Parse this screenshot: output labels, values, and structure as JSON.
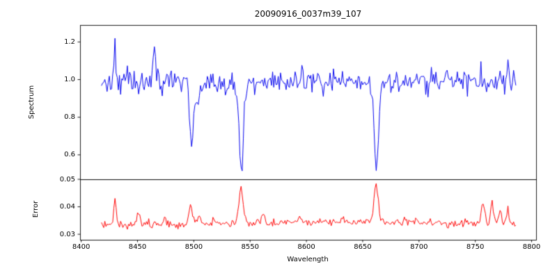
{
  "chart_data": {
    "type": "line",
    "title": "20090916_0037m39_107",
    "xlabel": "Wavelength",
    "xlim": [
      8399,
      8804
    ],
    "xticks": [
      "8400",
      "8450",
      "8500",
      "8550",
      "8600",
      "8650",
      "8700",
      "8750",
      "8800"
    ],
    "grid": false,
    "legend": false,
    "panels": [
      {
        "name": "spectrum",
        "ylabel": "Spectrum",
        "ylim": [
          0.47,
          1.29
        ],
        "yticks": [
          "0.6",
          "0.8",
          "1.0",
          "1.2"
        ],
        "line_color": "#0000ee",
        "series": {
          "x_start": 8418,
          "x_end": 8786,
          "x_step": 1,
          "continuum": 0.99,
          "noise_sigma": 0.034,
          "absorption_lines": [
            {
              "center": 8498.0,
              "depth": 0.38,
              "sigma": 1.6,
              "min_value": 0.61
            },
            {
              "center": 8504.0,
              "depth": 0.13,
              "sigma": 1.3,
              "min_value": 0.85
            },
            {
              "center": 8542.1,
              "depth": 0.46,
              "sigma": 2.0,
              "min_value": 0.54
            },
            {
              "center": 8662.1,
              "depth": 0.46,
              "sigma": 2.0,
              "min_value": 0.54
            }
          ],
          "emission_spikes": [
            {
              "center": 8430,
              "amp": 0.22,
              "sigma": 0.7,
              "peak_value": 1.21
            },
            {
              "center": 8465,
              "amp": 0.27,
              "sigma": 0.7,
              "peak_value": 1.26
            },
            {
              "center": 8779,
              "amp": 0.17,
              "sigma": 0.7,
              "peak_value": 1.16
            }
          ]
        }
      },
      {
        "name": "error",
        "ylabel": "Error",
        "ylim": [
          0.028,
          0.05
        ],
        "yticks": [
          "0.03",
          "0.04",
          "0.05"
        ],
        "line_color": "#ff0000",
        "series": {
          "x_start": 8418,
          "x_end": 8786,
          "x_step": 1,
          "baseline": 0.0333,
          "noise_sigma": 0.0007,
          "broad_hump": {
            "center": 8630,
            "amp": 0.0012,
            "sigma": 110
          },
          "peaks": [
            {
              "center": 8430,
              "amp": 0.0095,
              "sigma": 1.2
            },
            {
              "center": 8451,
              "amp": 0.0042,
              "sigma": 1.2
            },
            {
              "center": 8474,
              "amp": 0.0024,
              "sigma": 1.0
            },
            {
              "center": 8497,
              "amp": 0.0062,
              "sigma": 1.5
            },
            {
              "center": 8505,
              "amp": 0.0032,
              "sigma": 1.2
            },
            {
              "center": 8542,
              "amp": 0.0135,
              "sigma": 1.8
            },
            {
              "center": 8562,
              "amp": 0.0028,
              "sigma": 1.2
            },
            {
              "center": 8594,
              "amp": 0.0018,
              "sigma": 1.5
            },
            {
              "center": 8662,
              "amp": 0.0145,
              "sigma": 1.8
            },
            {
              "center": 8688,
              "amp": 0.002,
              "sigma": 1.2
            },
            {
              "center": 8757,
              "amp": 0.007,
              "sigma": 1.5
            },
            {
              "center": 8765,
              "amp": 0.0085,
              "sigma": 1.2
            },
            {
              "center": 8772,
              "amp": 0.0055,
              "sigma": 1.2
            },
            {
              "center": 8779,
              "amp": 0.0045,
              "sigma": 1.0
            }
          ]
        }
      }
    ]
  }
}
